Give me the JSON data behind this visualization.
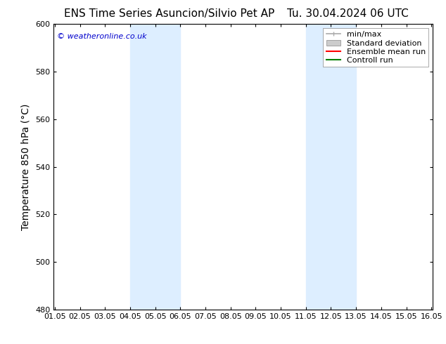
{
  "title_left": "ENS Time Series Asuncion/Silvio Pet AP",
  "title_right": "Tu. 30.04.2024 06 UTC",
  "ylabel": "Temperature 850 hPa (°C)",
  "watermark": "© weatheronline.co.uk",
  "watermark_color": "#0000cc",
  "xlim_left": 1.0,
  "xlim_right": 16.05,
  "ylim_bottom": 480,
  "ylim_top": 600,
  "yticks": [
    480,
    500,
    520,
    540,
    560,
    580,
    600
  ],
  "xtick_labels": [
    "01.05",
    "02.05",
    "03.05",
    "04.05",
    "05.05",
    "06.05",
    "07.05",
    "08.05",
    "09.05",
    "10.05",
    "11.05",
    "12.05",
    "13.05",
    "14.05",
    "15.05",
    "16.05"
  ],
  "xtick_positions": [
    1.0,
    2.0,
    3.0,
    4.0,
    5.0,
    6.0,
    7.0,
    8.0,
    9.0,
    10.0,
    11.0,
    12.0,
    13.0,
    14.0,
    15.0,
    16.0
  ],
  "shaded_regions": [
    {
      "x_start": 4.0,
      "x_end": 6.0
    },
    {
      "x_start": 11.0,
      "x_end": 13.0
    }
  ],
  "shaded_color": "#ddeeff",
  "background_color": "#ffffff",
  "legend_entries": [
    {
      "label": "min/max",
      "color": "#aaaaaa",
      "style": "minmax"
    },
    {
      "label": "Standard deviation",
      "color": "#cccccc",
      "style": "stddev"
    },
    {
      "label": "Ensemble mean run",
      "color": "#ff0000",
      "style": "line"
    },
    {
      "label": "Controll run",
      "color": "#008000",
      "style": "line"
    }
  ],
  "tick_fontsize": 8,
  "label_fontsize": 10,
  "title_fontsize": 11,
  "watermark_fontsize": 8,
  "legend_fontsize": 8
}
